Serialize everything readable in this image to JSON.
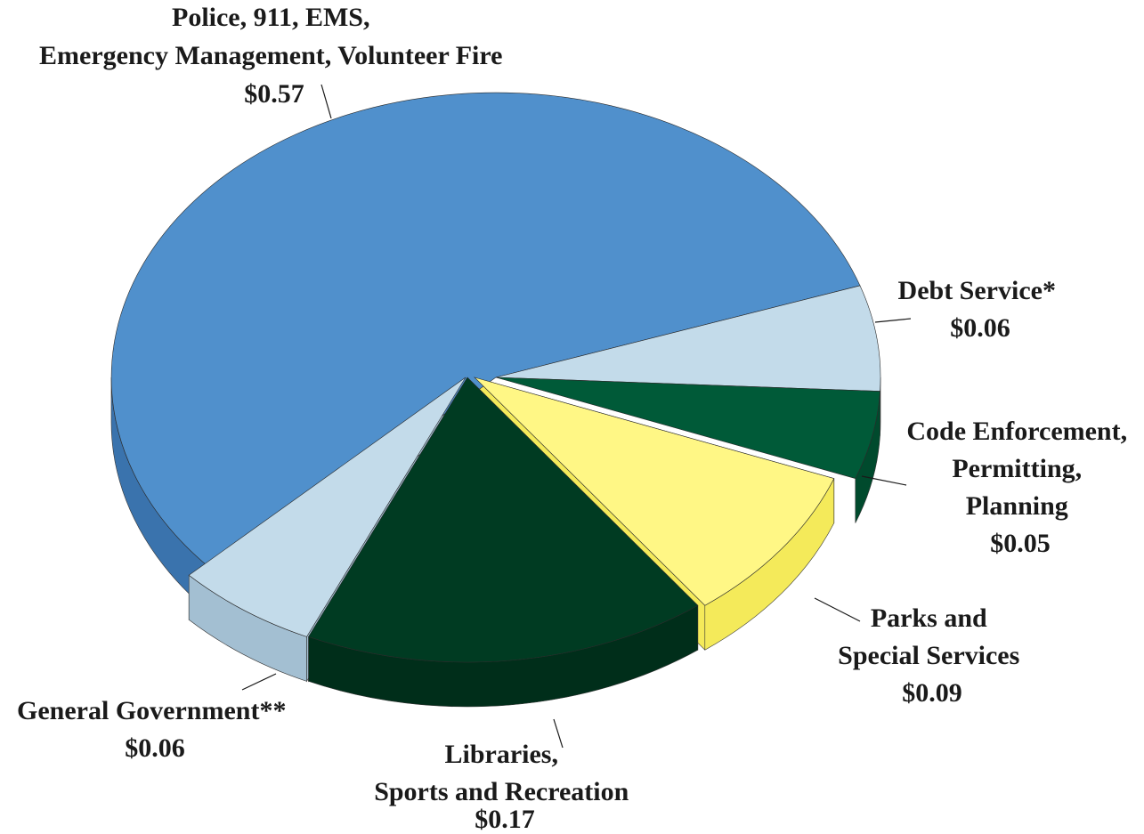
{
  "chart_data": {
    "type": "pie",
    "style": "3d-exploded",
    "title": "",
    "slices": [
      {
        "label_lines": [
          "Police, 911, EMS,",
          "Emergency Management, Volunteer Fire"
        ],
        "value_label": "$0.57",
        "value": 0.57,
        "color": "#5090cc",
        "side_color": "#3a73ad"
      },
      {
        "label_lines": [
          "Debt Service*"
        ],
        "value_label": "$0.06",
        "value": 0.06,
        "color": "#c3dbea",
        "side_color": "#a3bfd2"
      },
      {
        "label_lines": [
          "Code Enforcement,",
          "Permitting,",
          "Planning"
        ],
        "value_label": "$0.05",
        "value": 0.05,
        "color": "#005a38",
        "side_color": "#004a2d"
      },
      {
        "label_lines": [
          "Parks and",
          "Special Services"
        ],
        "value_label": "$0.09",
        "value": 0.09,
        "color": "#fff785",
        "side_color": "#f4ea5a"
      },
      {
        "label_lines": [
          "Libraries,",
          "Sports and Recreation"
        ],
        "value_label": "$0.17",
        "value": 0.17,
        "color": "#003b22",
        "side_color": "#002e1a"
      },
      {
        "label_lines": [
          "General Government**"
        ],
        "value_label": "$0.06",
        "value": 0.06,
        "color": "#c3dbea",
        "side_color": "#a3bfd2"
      }
    ]
  }
}
